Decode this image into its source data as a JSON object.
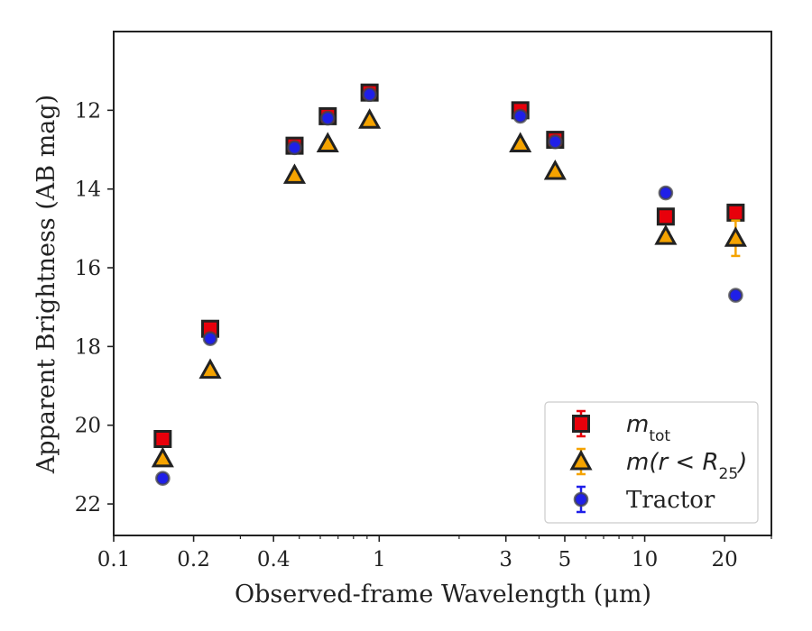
{
  "chart_data": {
    "type": "scatter",
    "xlabel": "Observed-frame Wavelength (μm)",
    "ylabel": "Apparent Brightness (AB mag)",
    "xscale": "log",
    "xlim": [
      0.1,
      30
    ],
    "ylim": [
      22.8,
      10.0
    ],
    "y_inverted": true,
    "x_ticks": [
      0.1,
      0.2,
      0.4,
      1,
      3,
      5,
      10,
      20
    ],
    "x_tick_labels": [
      "0.1",
      "0.2",
      "0.4",
      "1",
      "3",
      "5",
      "10",
      "20"
    ],
    "y_ticks": [
      12,
      14,
      16,
      18,
      20,
      22
    ],
    "y_tick_labels": [
      "12",
      "14",
      "16",
      "18",
      "20",
      "22"
    ],
    "grid": false,
    "legend_position": "bottom-right",
    "legend": [
      {
        "label_main": "m",
        "label_sub": "tot",
        "marker": "square",
        "color": "#e8000b"
      },
      {
        "label_main": "m(r < R",
        "label_sub": "25",
        "label_tail": ")",
        "marker": "triangle",
        "color": "#f5a300"
      },
      {
        "label_main": "Tractor",
        "marker": "circle",
        "color": "#1f1fe8"
      }
    ],
    "series": [
      {
        "name": "m_tot",
        "marker": "square",
        "color": "#e8000b",
        "edge_color": "#222222",
        "x": [
          0.153,
          0.231,
          0.48,
          0.64,
          0.92,
          3.4,
          4.6,
          12.0,
          22.0
        ],
        "y": [
          20.35,
          17.55,
          12.9,
          12.15,
          11.55,
          12.0,
          12.75,
          14.7,
          14.6
        ],
        "yerr": [
          0.05,
          0.05,
          0.05,
          0.05,
          0.05,
          0.05,
          0.05,
          0.05,
          0.05
        ]
      },
      {
        "name": "m(r<R25)",
        "marker": "triangle",
        "color": "#f5a300",
        "edge_color": "#222222",
        "x": [
          0.153,
          0.231,
          0.48,
          0.64,
          0.92,
          3.4,
          4.6,
          12.0,
          22.0
        ],
        "y": [
          20.85,
          18.6,
          13.65,
          12.85,
          12.25,
          12.85,
          13.55,
          15.2,
          15.25
        ],
        "yerr": [
          0.05,
          0.05,
          0.05,
          0.05,
          0.05,
          0.05,
          0.05,
          0.1,
          0.45
        ]
      },
      {
        "name": "Tractor",
        "marker": "circle",
        "color": "#1f1fe8",
        "edge_color": "#444444",
        "x": [
          0.153,
          0.231,
          0.48,
          0.64,
          0.92,
          3.4,
          4.6,
          12.0,
          22.0
        ],
        "y": [
          21.35,
          17.8,
          12.95,
          12.2,
          11.6,
          12.15,
          12.8,
          14.1,
          16.7
        ],
        "yerr": [
          0.05,
          0.05,
          0.05,
          0.05,
          0.05,
          0.05,
          0.05,
          0.05,
          0.05
        ]
      }
    ]
  }
}
